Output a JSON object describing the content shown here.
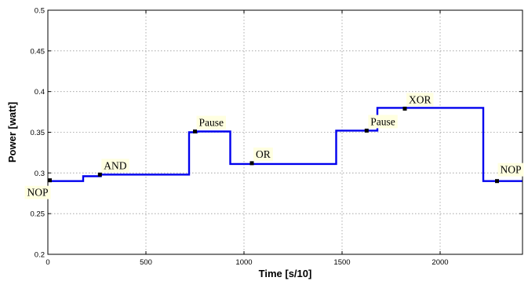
{
  "chart_data": {
    "type": "line",
    "xlabel": "Time [s/10]",
    "ylabel": "Power [watt]",
    "xlim": [
      0,
      2420
    ],
    "ylim": [
      0.2,
      0.5
    ],
    "xticks": [
      0,
      500,
      1000,
      1500,
      2000
    ],
    "yticks": [
      0.2,
      0.25,
      0.3,
      0.35,
      0.4,
      0.45,
      0.5
    ],
    "ytick_labels": [
      "0.2",
      "0.25",
      "0.3",
      "0.35",
      "0.4",
      "0.45",
      "0.5"
    ],
    "grid": true,
    "series": [
      {
        "color": "#0000ee",
        "x": [
          0,
          180,
          180,
          270,
          270,
          720,
          720,
          760,
          760,
          930,
          930,
          1470,
          1470,
          1680,
          1680,
          2220,
          2220,
          2420
        ],
        "y": [
          0.29,
          0.29,
          0.296,
          0.296,
          0.298,
          0.298,
          0.35,
          0.35,
          0.351,
          0.351,
          0.311,
          0.311,
          0.352,
          0.352,
          0.38,
          0.38,
          0.29,
          0.29
        ]
      }
    ],
    "annotations": [
      {
        "label": "NOP",
        "x": 10,
        "y": 0.291
      },
      {
        "label": "AND",
        "x": 265,
        "y": 0.298
      },
      {
        "label": "Pause",
        "x": 750,
        "y": 0.351
      },
      {
        "label": "OR",
        "x": 1040,
        "y": 0.312
      },
      {
        "label": "Pause",
        "x": 1625,
        "y": 0.352
      },
      {
        "label": "XOR",
        "x": 1820,
        "y": 0.379
      },
      {
        "label": "NOP",
        "x": 2290,
        "y": 0.29
      }
    ],
    "colors": {
      "line": "#0000ee",
      "label_bg": "#ffffe0",
      "grid": "#999999"
    }
  }
}
